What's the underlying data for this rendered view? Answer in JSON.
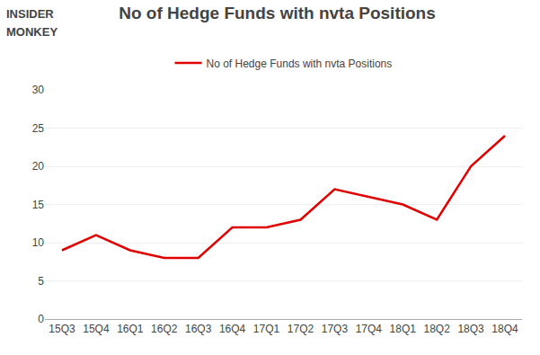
{
  "chart_data": {
    "type": "line",
    "title": "No of Hedge Funds with nvta Positions",
    "annotations": [
      "INSIDER",
      "MONKEY"
    ],
    "categories": [
      "15Q3",
      "15Q4",
      "16Q1",
      "16Q2",
      "16Q3",
      "16Q4",
      "17Q1",
      "17Q2",
      "17Q3",
      "17Q4",
      "18Q1",
      "18Q2",
      "18Q3",
      "18Q4"
    ],
    "series": [
      {
        "name": "No of Hedge Funds with nvta Positions",
        "color": "#e00000",
        "values": [
          9,
          11,
          9,
          8,
          8,
          12,
          12,
          13,
          17,
          16,
          15,
          13,
          20,
          24
        ]
      }
    ],
    "ylim": [
      0,
      30
    ],
    "yticks": [
      0,
      5,
      10,
      15,
      20,
      25,
      30
    ],
    "grid": true,
    "legend": "top"
  }
}
